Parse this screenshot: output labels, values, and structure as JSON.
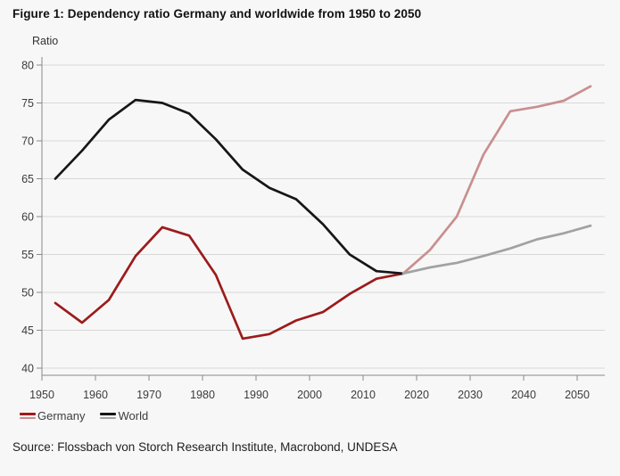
{
  "chart_data": {
    "type": "line",
    "title": "Figure 1: Dependency ratio Germany and worldwide from 1950 to 2050",
    "ylabel": "Ratio",
    "xlabel": "",
    "ylim": [
      40,
      80
    ],
    "xlim": [
      1950,
      2055
    ],
    "yticks": [
      40,
      45,
      50,
      55,
      60,
      65,
      70,
      75,
      80
    ],
    "xticks": [
      1950,
      1960,
      1970,
      1980,
      1990,
      2000,
      2010,
      2020,
      2030,
      2040,
      2050
    ],
    "grid": "horizontal",
    "legend_position": "bottom-left",
    "projection_split_year": 2017.5,
    "x": [
      1952.5,
      1957.5,
      1962.5,
      1967.5,
      1972.5,
      1977.5,
      1982.5,
      1987.5,
      1992.5,
      1997.5,
      2002.5,
      2007.5,
      2012.5,
      2017.5,
      2022.5,
      2027.5,
      2032.5,
      2037.5,
      2042.5,
      2047.5,
      2052.5
    ],
    "series": [
      {
        "name": "Germany",
        "color_historical": "#9c1b1b",
        "color_projection": "#c98f8f",
        "values": [
          48.6,
          46.0,
          49.0,
          54.8,
          58.6,
          57.5,
          52.3,
          43.9,
          44.5,
          46.3,
          47.4,
          49.8,
          51.8,
          52.5,
          55.6,
          60.0,
          68.2,
          73.9,
          74.5,
          75.3,
          77.2
        ]
      },
      {
        "name": "World",
        "color_historical": "#161616",
        "color_projection": "#a2a2a2",
        "values": [
          65.0,
          68.7,
          72.8,
          75.4,
          75.0,
          73.6,
          70.2,
          66.2,
          63.8,
          62.3,
          59.0,
          55.0,
          52.8,
          52.5,
          53.3,
          53.9,
          54.8,
          55.8,
          57.0,
          57.8,
          58.8
        ]
      }
    ],
    "legend": [
      {
        "label": "Germany",
        "colors": [
          "#9c1b1b",
          "#c98f8f"
        ]
      },
      {
        "label": "World",
        "colors": [
          "#161616",
          "#a2a2a2"
        ]
      }
    ]
  },
  "source": {
    "text": "Source: Flossbach von Storch Research Institute, Macrobond, UNDESA"
  },
  "colors": {
    "background": "#f7f7f7",
    "gridline": "#d8d8d8",
    "axis": "#8a8a8a",
    "tick_label": "#3b3b3b",
    "title_text": "#111111",
    "source_text": "#1f1f1f"
  }
}
